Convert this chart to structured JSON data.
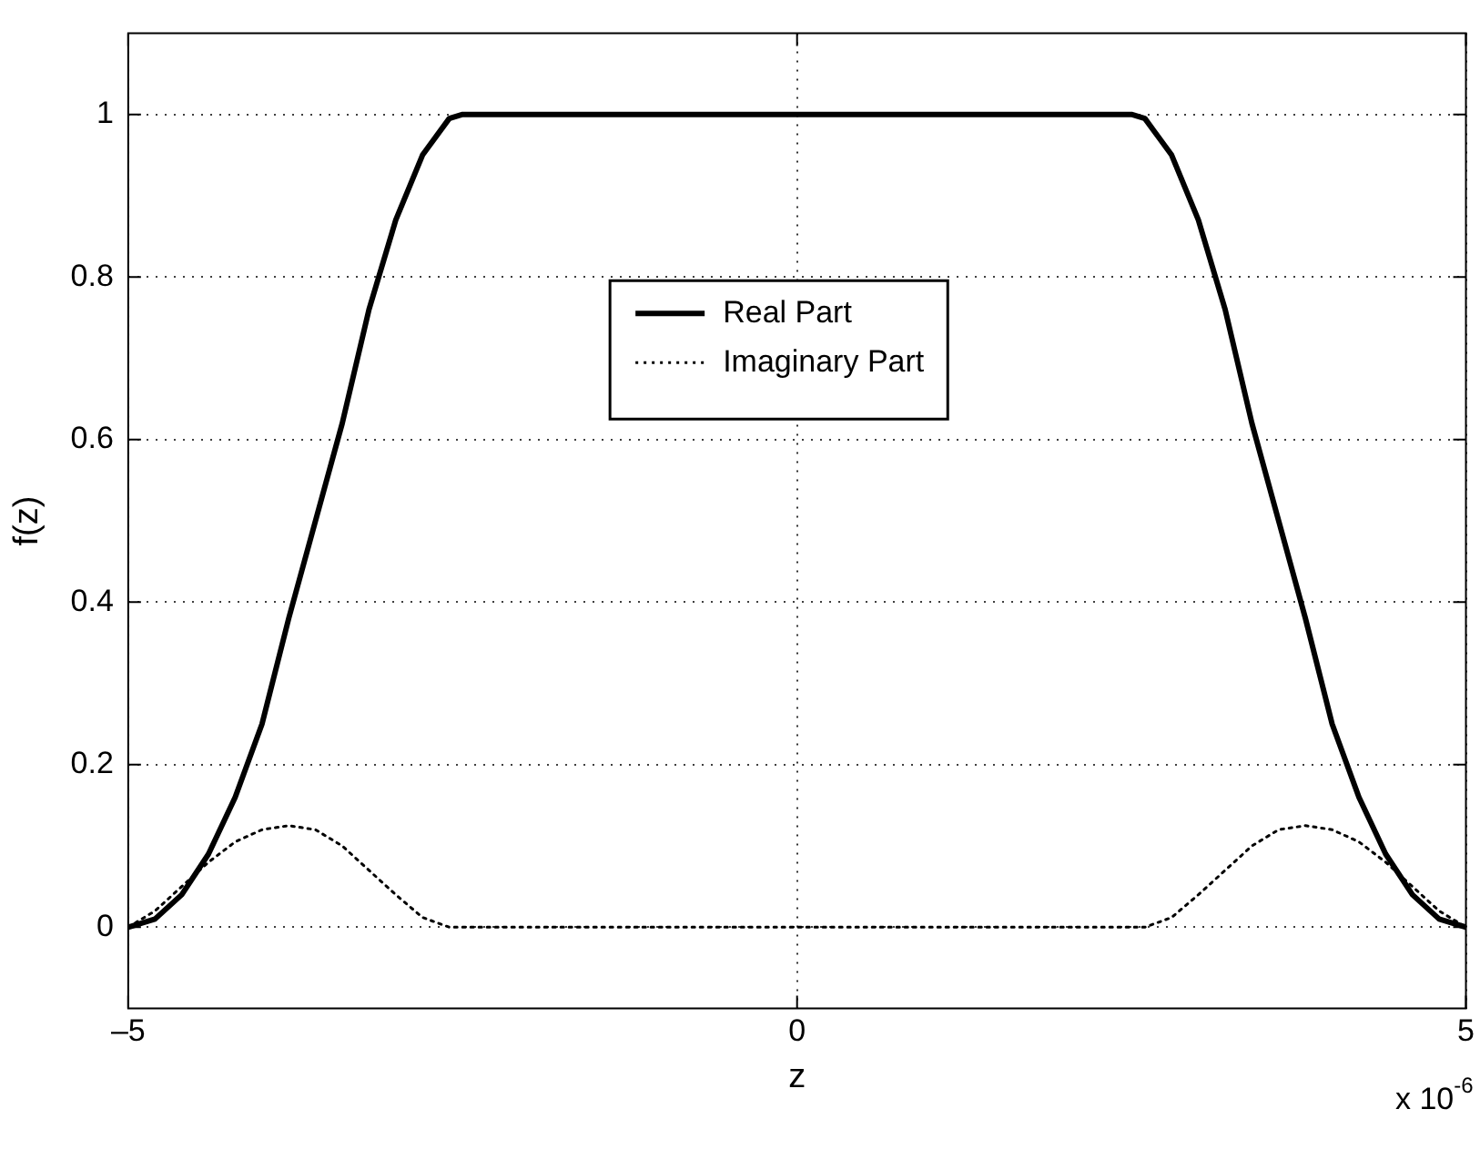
{
  "chart_data": {
    "type": "line",
    "xlabel": "z",
    "ylabel": "f(z)",
    "annotations": [
      "x 10$^{-6}$"
    ],
    "xlim": [
      -5,
      5
    ],
    "xticks": [
      {
        "value": -5,
        "label": "–5"
      },
      0,
      5
    ],
    "ylim": [
      -0.1,
      1.1
    ],
    "yticks": [
      0,
      0.2,
      0.4,
      0.6,
      0.8,
      1
    ],
    "grid": true,
    "legend": "top",
    "marker": "none",
    "series": [
      {
        "name": "Real Part",
        "color": "#000000",
        "line_style": "solid",
        "x": [
          -5,
          -4.8,
          -4.6,
          -4.4,
          -4.2,
          -4,
          -3.8,
          -3.6,
          -3.4,
          -3.2,
          -3,
          -2.8,
          -2.6,
          -2.5,
          2.5,
          2.6,
          2.8,
          3,
          3.2,
          3.4,
          3.6,
          3.8,
          4,
          4.2,
          4.4,
          4.6,
          4.8,
          5
        ],
        "values": [
          0,
          0.01,
          0.04,
          0.09,
          0.16,
          0.25,
          0.38,
          0.5,
          0.62,
          0.76,
          0.87,
          0.95,
          0.995,
          1,
          1,
          0.995,
          0.95,
          0.87,
          0.76,
          0.62,
          0.5,
          0.38,
          0.25,
          0.16,
          0.09,
          0.04,
          0.01,
          0
        ]
      },
      {
        "name": "Imaginary Part",
        "color": "#000000",
        "line_style": "dotted",
        "x": [
          -5,
          -4.8,
          -4.6,
          -4.4,
          -4.2,
          -4,
          -3.8,
          -3.6,
          -3.4,
          -3.2,
          -3,
          -2.8,
          -2.6,
          2.6,
          2.8,
          3,
          3.2,
          3.4,
          3.6,
          3.8,
          4,
          4.2,
          4.4,
          4.6,
          4.8,
          5
        ],
        "values": [
          0,
          0.02,
          0.05,
          0.08,
          0.105,
          0.12,
          0.125,
          0.12,
          0.1,
          0.07,
          0.04,
          0.012,
          0,
          0,
          0.012,
          0.04,
          0.07,
          0.1,
          0.12,
          0.125,
          0.12,
          0.105,
          0.08,
          0.05,
          0.02,
          0
        ]
      }
    ]
  }
}
